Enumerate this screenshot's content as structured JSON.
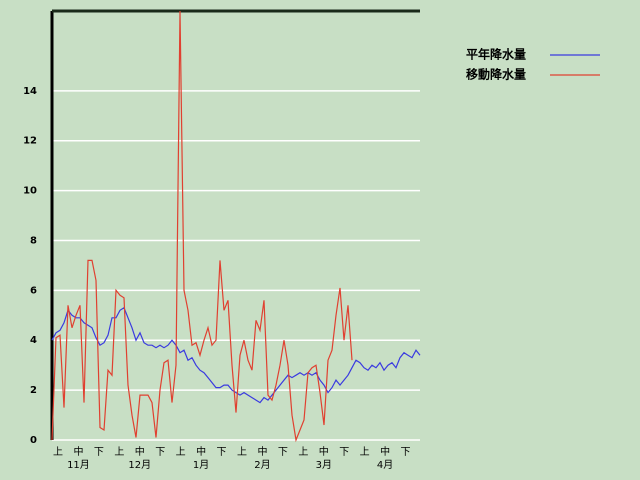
{
  "chart_data": {
    "type": "line",
    "dekad_labels": [
      "上",
      "中",
      "下",
      "上",
      "中",
      "下",
      "上",
      "中",
      "下",
      "上",
      "中",
      "下",
      "上",
      "中",
      "下",
      "上",
      "中",
      "下"
    ],
    "month_labels": [
      "11月",
      "12月",
      "1月",
      "2月",
      "3月",
      "4月"
    ],
    "series": [
      {
        "name": "平年降水量",
        "color": "#3a3ae0",
        "values": [
          4.0,
          4.3,
          4.4,
          4.7,
          5.2,
          5.0,
          4.9,
          4.9,
          4.7,
          4.6,
          4.5,
          4.1,
          3.8,
          3.9,
          4.2,
          4.9,
          4.9,
          5.2,
          5.3,
          4.9,
          4.5,
          4.0,
          4.3,
          3.9,
          3.8,
          3.8,
          3.7,
          3.8,
          3.7,
          3.8,
          4.0,
          3.8,
          3.5,
          3.6,
          3.2,
          3.3,
          3.0,
          2.8,
          2.7,
          2.5,
          2.3,
          2.1,
          2.1,
          2.2,
          2.2,
          2.0,
          1.9,
          1.8,
          1.9,
          1.8,
          1.7,
          1.6,
          1.5,
          1.7,
          1.6,
          1.8,
          2.0,
          2.2,
          2.4,
          2.6,
          2.5,
          2.6,
          2.7,
          2.6,
          2.7,
          2.6,
          2.7,
          2.4,
          2.2,
          1.9,
          2.1,
          2.4,
          2.2,
          2.4,
          2.6,
          2.9,
          3.2,
          3.1,
          2.9,
          2.8,
          3.0,
          2.9,
          3.1,
          2.8,
          3.0,
          3.1,
          2.9,
          3.3,
          3.5,
          3.4,
          3.3,
          3.6,
          3.4
        ]
      },
      {
        "name": "移動降水量",
        "color": "#e04030",
        "values": [
          0,
          4.1,
          4.2,
          1.3,
          5.4,
          4.5,
          5.0,
          5.4,
          1.5,
          7.2,
          7.2,
          6.4,
          0.5,
          0.4,
          2.8,
          2.6,
          6.0,
          5.8,
          5.7,
          2.2,
          1.0,
          0.1,
          1.8,
          1.8,
          1.8,
          1.5,
          0.1,
          2.0,
          3.1,
          3.2,
          1.5,
          3.0,
          17.2,
          6.0,
          5.2,
          3.8,
          3.9,
          3.4,
          4.0,
          4.5,
          3.8,
          4.0,
          7.2,
          5.2,
          5.6,
          3.0,
          1.1,
          3.4,
          4.0,
          3.2,
          2.8,
          4.8,
          4.4,
          5.6,
          1.8,
          1.6,
          2.2,
          3.0,
          4.0,
          3.0,
          1.0,
          0.0,
          0.4,
          0.8,
          2.7,
          2.9,
          3.0,
          1.9,
          0.6,
          3.2,
          3.6,
          5.0,
          6.1,
          4.0,
          5.4,
          3.2,
          null,
          null,
          null,
          null,
          null,
          null,
          null,
          null,
          null,
          null,
          null,
          null,
          null,
          null,
          null,
          null,
          null
        ]
      }
    ],
    "ylim": [
      0,
      17.2
    ],
    "yticks": [
      0,
      2,
      4,
      6,
      8,
      10,
      12,
      14
    ],
    "grid": true
  }
}
